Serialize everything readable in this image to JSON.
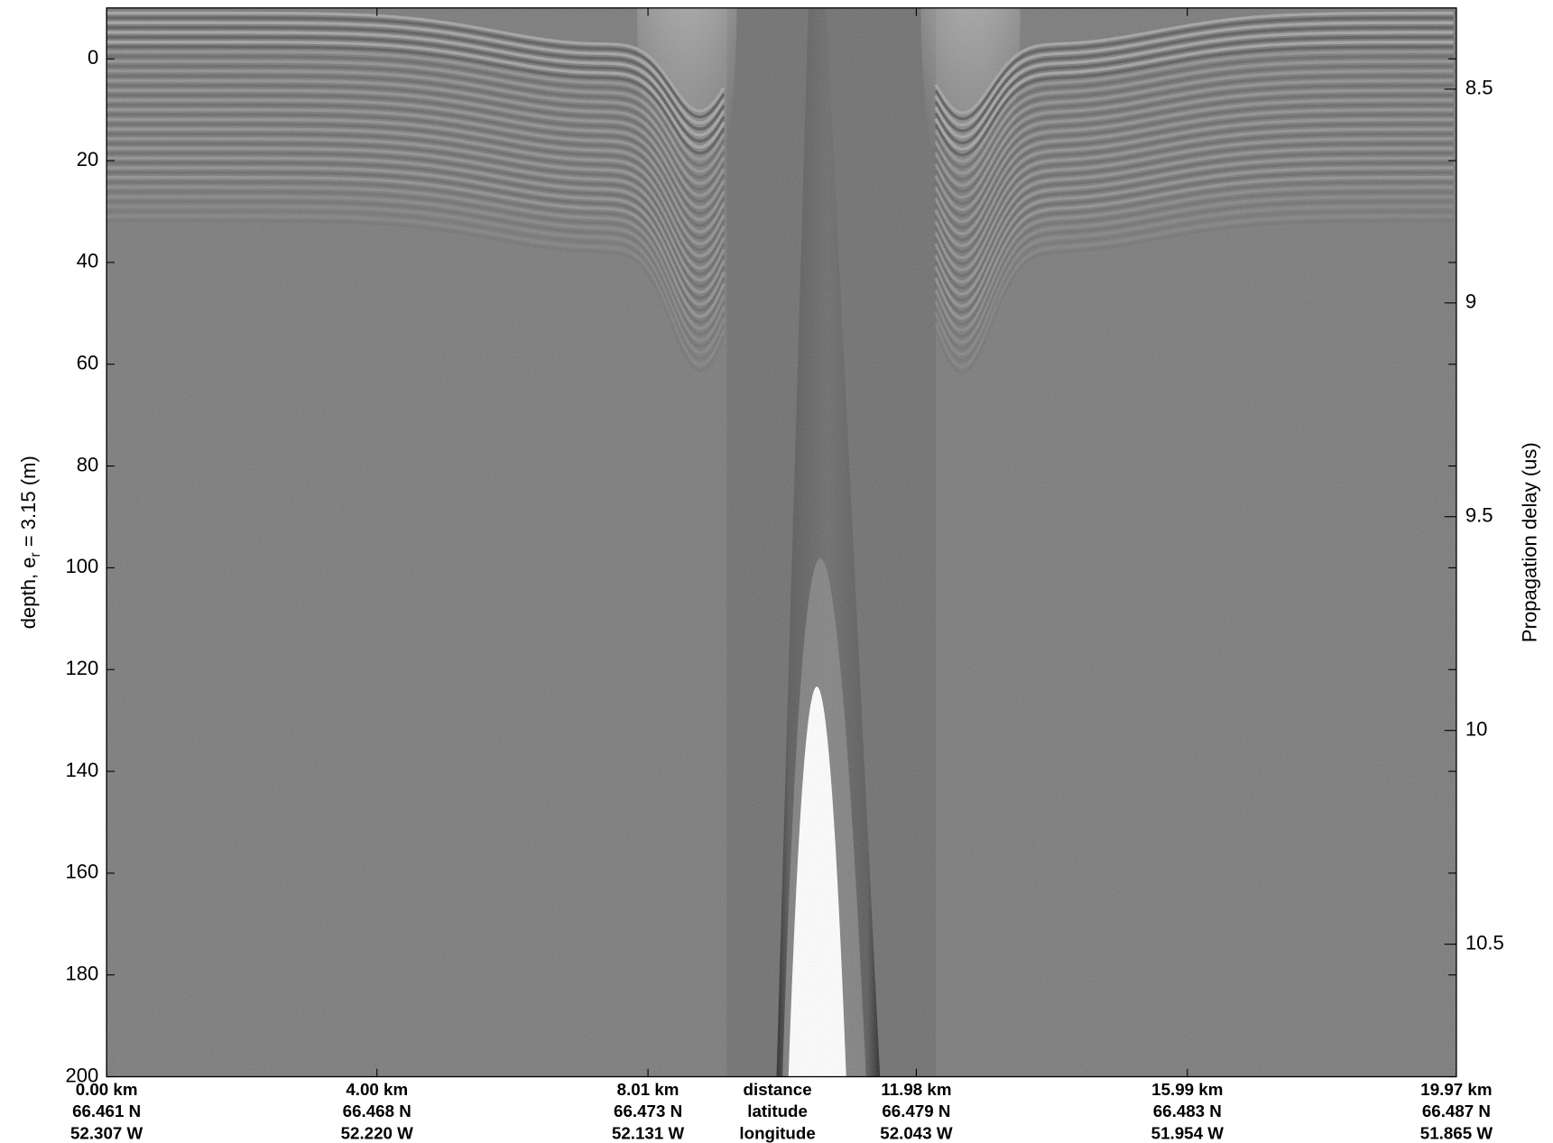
{
  "chart_data": {
    "type": "echogram",
    "ylabel": {
      "text": "depth, e",
      "subscript": "r",
      "rest": " = 3.15 (m)"
    },
    "y2label": "Propagation delay (us)",
    "ylim": [
      200,
      -10
    ],
    "yticks": [
      0,
      20,
      40,
      60,
      80,
      100,
      120,
      140,
      160,
      180,
      200
    ],
    "y2lim": [
      10.81,
      8.31
    ],
    "y2ticks": [
      8.5,
      9,
      9.5,
      10,
      10.5
    ],
    "xlim": [
      0,
      19.97
    ],
    "xticks": [
      {
        "value": 0,
        "label": "0.00 km"
      },
      {
        "value": 4.0,
        "label": "4.00 km"
      },
      {
        "value": 8.01,
        "label": "8.01 km"
      },
      {
        "value": 11.98,
        "label": "11.98 km"
      },
      {
        "value": 15.99,
        "label": "15.99 km"
      },
      {
        "value": 19.97,
        "label": "19.97 km"
      }
    ],
    "latitude": [
      "66.461 N",
      "66.468 N",
      "66.473 N",
      "66.479 N",
      "66.483 N",
      "66.487 N"
    ],
    "longitude": [
      "52.307 W",
      "52.220 W",
      "52.131 W",
      "52.043 W",
      "51.954 W",
      "51.865 W"
    ],
    "row_labels": [
      "distance",
      "latitude",
      "longitude"
    ]
  }
}
